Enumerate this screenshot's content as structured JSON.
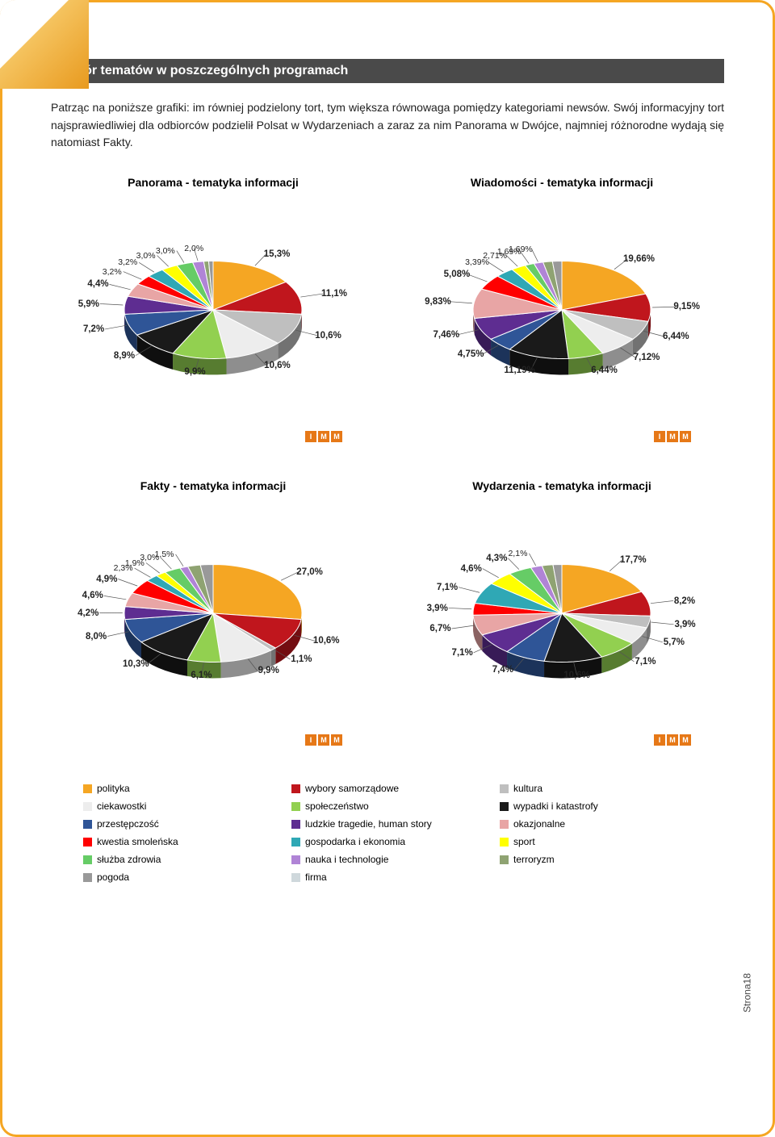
{
  "heading": "Dobór tematów w poszczególnych programach",
  "intro": "Patrząc na poniższe grafiki: im równiej podzielony tort, tym większa równowaga pomiędzy kategoriami newsów. Swój informacyjny tort najsprawiedliwiej dla odbiorców podzielił Polsat w Wydarzeniach a zaraz za nim Panorama w Dwójce, najmniej różnorodne wydają się natomiast Fakty.",
  "page_number": "Strona18",
  "imm": [
    "I",
    "M",
    "M"
  ],
  "background_color": "#ffffff",
  "border_color": "#f5a623",
  "heading_bg": "#4a4a4a",
  "pie_radius": 110,
  "pie_tilt": 0.55,
  "pie_depth": 20,
  "chart_title_fontsize": 14,
  "label_fontsize": 10.5,
  "label_fontsize_bold": 11.5,
  "categories": [
    {
      "key": "polityka",
      "label": "polityka",
      "color": "#f5a623"
    },
    {
      "key": "wybory",
      "label": "wybory samorządowe",
      "color": "#c0161d"
    },
    {
      "key": "kultura",
      "label": "kultura",
      "color": "#bfbfbf"
    },
    {
      "key": "ciekawostki",
      "label": "ciekawostki",
      "color": "#ededed"
    },
    {
      "key": "spoleczenstwo",
      "label": "społeczeństwo",
      "color": "#92d050"
    },
    {
      "key": "wypadki",
      "label": "wypadki i katastrofy",
      "color": "#1a1a1a"
    },
    {
      "key": "przestepczosc",
      "label": "przestępczość",
      "color": "#2f5597"
    },
    {
      "key": "tragedie",
      "label": "ludzkie tragedie, human story",
      "color": "#5e2d91"
    },
    {
      "key": "okazjonalne",
      "label": "okazjonalne",
      "color": "#e8a5a5"
    },
    {
      "key": "smolenska",
      "label": "kwestia smoleńska",
      "color": "#ff0000"
    },
    {
      "key": "gospodarka",
      "label": "gospodarka i ekonomia",
      "color": "#2fa8b5"
    },
    {
      "key": "sport",
      "label": "sport",
      "color": "#ffff00"
    },
    {
      "key": "zdrowia",
      "label": "służba zdrowia",
      "color": "#66cc66"
    },
    {
      "key": "nauka",
      "label": "nauka i technologie",
      "color": "#b084d6"
    },
    {
      "key": "terroryzm",
      "label": "terroryzm",
      "color": "#8fa372"
    },
    {
      "key": "pogoda",
      "label": "pogoda",
      "color": "#999999"
    },
    {
      "key": "firma",
      "label": "firma",
      "color": "#cfd8dc"
    }
  ],
  "charts": [
    {
      "title": "Panorama - tematyka informacji",
      "slices": [
        {
          "cat": "polityka",
          "value": 15.3,
          "label": "15,3%",
          "bold": true
        },
        {
          "cat": "wybory",
          "value": 11.1,
          "label": "11,1%",
          "bold": true
        },
        {
          "cat": "kultura",
          "value": 10.6,
          "label": "10,6%",
          "bold": true
        },
        {
          "cat": "ciekawostki",
          "value": 10.6,
          "label": "10,6%",
          "bold": true
        },
        {
          "cat": "spoleczenstwo",
          "value": 9.9,
          "label": "9,9%",
          "bold": true
        },
        {
          "cat": "wypadki",
          "value": 8.9,
          "label": "8,9%",
          "bold": true
        },
        {
          "cat": "przestepczosc",
          "value": 7.2,
          "label": "7,2%",
          "bold": true
        },
        {
          "cat": "tragedie",
          "value": 5.9,
          "label": "5,9%",
          "bold": true
        },
        {
          "cat": "okazjonalne",
          "value": 4.4,
          "label": "4,4%",
          "bold": true
        },
        {
          "cat": "smolenska",
          "value": 3.2,
          "label": "3,2%",
          "bold": false
        },
        {
          "cat": "gospodarka",
          "value": 3.2,
          "label": "3,2%",
          "bold": false
        },
        {
          "cat": "sport",
          "value": 3.0,
          "label": "3,0%",
          "bold": false
        },
        {
          "cat": "zdrowia",
          "value": 3.0,
          "label": "3,0%",
          "bold": false
        },
        {
          "cat": "nauka",
          "value": 2.0,
          "label": "2,0%",
          "bold": false
        },
        {
          "cat": "terroryzm",
          "value": 0.9,
          "label": "",
          "bold": false
        },
        {
          "cat": "pogoda",
          "value": 0.8,
          "label": "",
          "bold": false
        }
      ]
    },
    {
      "title": "Wiadomości - tematyka informacji",
      "slices": [
        {
          "cat": "polityka",
          "value": 19.66,
          "label": "19,66%",
          "bold": true
        },
        {
          "cat": "wybory",
          "value": 9.15,
          "label": "9,15%",
          "bold": true
        },
        {
          "cat": "kultura",
          "value": 6.44,
          "label": "6,44%",
          "bold": true
        },
        {
          "cat": "ciekawostki",
          "value": 7.12,
          "label": "7,12%",
          "bold": true
        },
        {
          "cat": "spoleczenstwo",
          "value": 6.44,
          "label": "6,44%",
          "bold": true
        },
        {
          "cat": "wypadki",
          "value": 11.19,
          "label": "11,19%",
          "bold": true
        },
        {
          "cat": "przestepczosc",
          "value": 4.75,
          "label": "4,75%",
          "bold": true
        },
        {
          "cat": "tragedie",
          "value": 7.46,
          "label": "7,46%",
          "bold": true
        },
        {
          "cat": "okazjonalne",
          "value": 9.83,
          "label": "9,83%",
          "bold": true
        },
        {
          "cat": "smolenska",
          "value": 5.08,
          "label": "5,08%",
          "bold": true
        },
        {
          "cat": "gospodarka",
          "value": 3.39,
          "label": "3,39%",
          "bold": false
        },
        {
          "cat": "sport",
          "value": 2.71,
          "label": "2,71%",
          "bold": false
        },
        {
          "cat": "zdrowia",
          "value": 1.69,
          "label": "1,69%",
          "bold": false
        },
        {
          "cat": "nauka",
          "value": 1.69,
          "label": "1,69%",
          "bold": false
        },
        {
          "cat": "terroryzm",
          "value": 1.7,
          "label": "",
          "bold": false
        },
        {
          "cat": "pogoda",
          "value": 1.7,
          "label": "",
          "bold": false
        }
      ]
    },
    {
      "title": "Fakty - tematyka informacji",
      "slices": [
        {
          "cat": "polityka",
          "value": 27.0,
          "label": "27,0%",
          "bold": true
        },
        {
          "cat": "wybory",
          "value": 10.6,
          "label": "10,6%",
          "bold": true
        },
        {
          "cat": "kultura",
          "value": 1.1,
          "label": "1,1%",
          "bold": true
        },
        {
          "cat": "ciekawostki",
          "value": 9.9,
          "label": "9,9%",
          "bold": true
        },
        {
          "cat": "spoleczenstwo",
          "value": 6.1,
          "label": "6,1%",
          "bold": true
        },
        {
          "cat": "wypadki",
          "value": 10.3,
          "label": "10,3%",
          "bold": true
        },
        {
          "cat": "przestepczosc",
          "value": 8.0,
          "label": "8,0%",
          "bold": true
        },
        {
          "cat": "tragedie",
          "value": 4.2,
          "label": "4,2%",
          "bold": true
        },
        {
          "cat": "okazjonalne",
          "value": 4.6,
          "label": "4,6%",
          "bold": true
        },
        {
          "cat": "smolenska",
          "value": 4.9,
          "label": "4,9%",
          "bold": true
        },
        {
          "cat": "gospodarka",
          "value": 2.3,
          "label": "2,3%",
          "bold": false
        },
        {
          "cat": "sport",
          "value": 1.9,
          "label": "1,9%",
          "bold": false
        },
        {
          "cat": "zdrowia",
          "value": 3.0,
          "label": "3,0%",
          "bold": false
        },
        {
          "cat": "nauka",
          "value": 1.5,
          "label": "1,5%",
          "bold": false
        },
        {
          "cat": "terroryzm",
          "value": 2.3,
          "label": "",
          "bold": false
        },
        {
          "cat": "pogoda",
          "value": 2.3,
          "label": "",
          "bold": false
        }
      ]
    },
    {
      "title": "Wydarzenia - tematyka informacji",
      "slices": [
        {
          "cat": "polityka",
          "value": 17.7,
          "label": "17,7%",
          "bold": true
        },
        {
          "cat": "wybory",
          "value": 8.2,
          "label": "8,2%",
          "bold": true
        },
        {
          "cat": "kultura",
          "value": 3.9,
          "label": "3,9%",
          "bold": true
        },
        {
          "cat": "ciekawostki",
          "value": 5.7,
          "label": "5,7%",
          "bold": true
        },
        {
          "cat": "spoleczenstwo",
          "value": 7.1,
          "label": "7,1%",
          "bold": true
        },
        {
          "cat": "wypadki",
          "value": 10.6,
          "label": "10,6%",
          "bold": true
        },
        {
          "cat": "przestepczosc",
          "value": 7.4,
          "label": "7,4%",
          "bold": true
        },
        {
          "cat": "tragedie",
          "value": 7.1,
          "label": "7,1%",
          "bold": true
        },
        {
          "cat": "okazjonalne",
          "value": 6.7,
          "label": "6,7%",
          "bold": true
        },
        {
          "cat": "smolenska",
          "value": 3.9,
          "label": "3,9%",
          "bold": true
        },
        {
          "cat": "gospodarka",
          "value": 7.1,
          "label": "7,1%",
          "bold": true
        },
        {
          "cat": "sport",
          "value": 4.6,
          "label": "4,6%",
          "bold": true
        },
        {
          "cat": "zdrowia",
          "value": 4.3,
          "label": "4,3%",
          "bold": true
        },
        {
          "cat": "nauka",
          "value": 2.1,
          "label": "2,1%",
          "bold": false
        },
        {
          "cat": "terroryzm",
          "value": 2.0,
          "label": "",
          "bold": false
        },
        {
          "cat": "pogoda",
          "value": 1.6,
          "label": "",
          "bold": false
        }
      ]
    }
  ]
}
